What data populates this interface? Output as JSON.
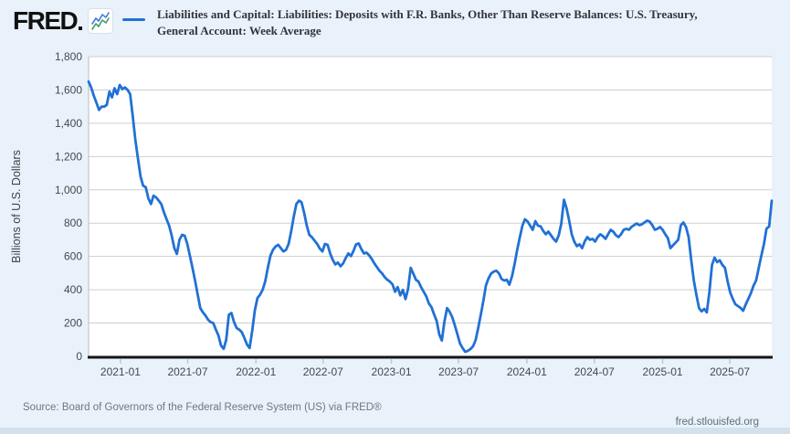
{
  "header": {
    "logo_text": "FRED",
    "title_lines": [
      "Liabilities and Capital: Liabilities: Deposits with F.R. Banks, Other Than Reserve Balances: U.S. Treasury,",
      "General Account: Week Average"
    ]
  },
  "footer": {
    "source_text": "Source: Board of Governors of the Federal Reserve System (US) via FRED®",
    "site_link": "fred.stlouisfed.org"
  },
  "colors": {
    "background": "#e9f2fa",
    "plot_background": "#ffffff",
    "series_line": "#2171d4",
    "gridline": "#cccfd3",
    "plot_border": "#b7bcc2",
    "x_axis": "#141518",
    "tick_mark": "#b9cad9",
    "tick_text": "#45484d",
    "logo_icon_blue": "#4678d8",
    "logo_icon_green": "#3fa06e"
  },
  "chart_data": {
    "type": "line",
    "title": "Liabilities and Capital: Liabilities: Deposits with F.R. Banks, Other Than Reserve Balances: U.S. Treasury, General Account: Week Average",
    "xlabel": "",
    "ylabel": "Billions of U.S. Dollars",
    "ylim": [
      0,
      1800
    ],
    "ytick_step": 200,
    "grid": true,
    "legend_position": "top",
    "frequency": "weekly",
    "x_start_date": "2020-10-07",
    "x_tick_labels": [
      "2021-01",
      "2021-07",
      "2022-01",
      "2022-07",
      "2023-01",
      "2023-07",
      "2024-01",
      "2024-07",
      "2025-01",
      "2025-07"
    ],
    "unit": "Billions of U.S. Dollars",
    "values": [
      1650,
      1615,
      1565,
      1525,
      1480,
      1500,
      1500,
      1510,
      1590,
      1555,
      1610,
      1575,
      1630,
      1605,
      1615,
      1600,
      1575,
      1445,
      1300,
      1190,
      1080,
      1025,
      1015,
      950,
      915,
      965,
      955,
      935,
      915,
      865,
      825,
      785,
      725,
      650,
      615,
      700,
      730,
      725,
      675,
      605,
      530,
      455,
      370,
      290,
      265,
      245,
      220,
      205,
      200,
      160,
      125,
      65,
      45,
      100,
      250,
      260,
      205,
      170,
      160,
      145,
      110,
      70,
      50,
      155,
      275,
      350,
      370,
      400,
      450,
      530,
      605,
      640,
      660,
      670,
      650,
      630,
      640,
      675,
      750,
      840,
      915,
      935,
      925,
      860,
      785,
      730,
      715,
      695,
      675,
      648,
      630,
      675,
      670,
      618,
      580,
      552,
      563,
      541,
      558,
      591,
      618,
      602,
      634,
      673,
      678,
      645,
      618,
      623,
      607,
      585,
      558,
      536,
      514,
      498,
      476,
      460,
      449,
      432,
      388,
      416,
      366,
      399,
      344,
      405,
      531,
      498,
      460,
      449,
      416,
      388,
      361,
      317,
      296,
      252,
      213,
      131,
      95,
      208,
      290,
      268,
      235,
      186,
      131,
      77,
      49,
      27,
      33,
      44,
      60,
      98,
      170,
      252,
      334,
      427,
      470,
      498,
      509,
      514,
      498,
      465,
      455,
      460,
      430,
      480,
      553,
      640,
      713,
      785,
      823,
      810,
      785,
      760,
      812,
      785,
      781,
      754,
      733,
      749,
      727,
      706,
      689,
      727,
      798,
      940,
      890,
      815,
      733,
      689,
      662,
      673,
      650,
      689,
      716,
      700,
      706,
      689,
      716,
      733,
      722,
      706,
      733,
      760,
      749,
      727,
      716,
      733,
      760,
      766,
      760,
      777,
      788,
      798,
      788,
      793,
      804,
      815,
      810,
      788,
      760,
      766,
      777,
      760,
      733,
      711,
      650,
      667,
      684,
      700,
      788,
      804,
      777,
      716,
      580,
      455,
      370,
      290,
      270,
      285,
      264,
      384,
      549,
      593,
      566,
      577,
      549,
      532,
      450,
      384,
      346,
      313,
      302,
      291,
      274,
      313,
      346,
      380,
      425,
      456,
      532,
      604,
      675,
      768,
      780,
      935
    ]
  }
}
